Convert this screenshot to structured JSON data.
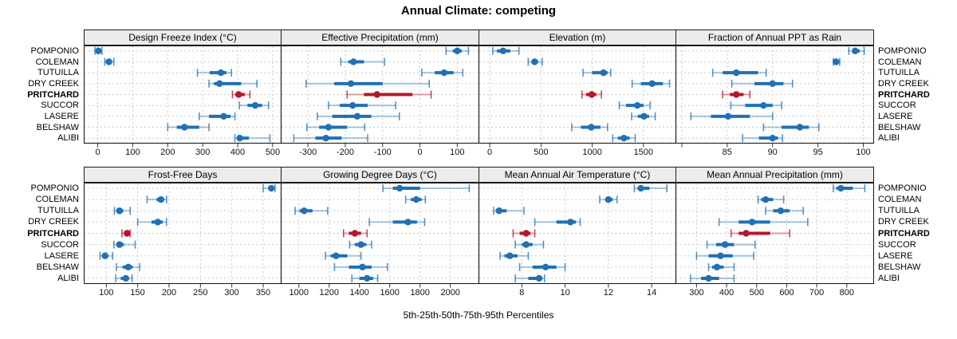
{
  "title": "Annual Climate: competing",
  "footer": "5th-25th-50th-75th-95th Percentiles",
  "colors": {
    "normal": "#2070b4",
    "normal_faint": "rgba(32,112,180,0.38)",
    "normal_cap": "rgba(32,112,180,0.75)",
    "highlight": "#b2182b",
    "highlight_faint": "rgba(178,24,43,0.40)",
    "highlight_cap": "rgba(178,24,43,0.78)",
    "panel_header_bg": "#ececec",
    "panel_border": "#1a1a1a",
    "gridline": "#cccccc",
    "tick": "#333333"
  },
  "chart_data": {
    "type": "trellis-dotplot-percentiles",
    "percentile_labels": [
      "5th",
      "25th",
      "50th",
      "75th",
      "95th"
    ],
    "sites": [
      "POMPONIO",
      "COLEMAN",
      "TUTUILLA",
      "DRY CREEK",
      "PRITCHARD",
      "SUCCOR",
      "LASERE",
      "BELSHAW",
      "ALIBI"
    ],
    "highlight_site": "PRITCHARD",
    "layout": {
      "rows": 2,
      "cols": 4,
      "legend": "none",
      "grid": "dashed"
    },
    "panels": [
      {
        "title": "Design Freeze Index (°C)",
        "domain": [
          -40,
          523
        ],
        "ticks": [
          0,
          100,
          200,
          300,
          400,
          500
        ],
        "values": {
          "POMPONIO": [
            -8,
            -3,
            2,
            6,
            12
          ],
          "COLEMAN": [
            20,
            27,
            32,
            38,
            46
          ],
          "TUTUILLA": [
            285,
            320,
            352,
            368,
            382
          ],
          "DRY CREEK": [
            318,
            332,
            348,
            410,
            455
          ],
          "PRITCHARD": [
            385,
            393,
            403,
            420,
            435
          ],
          "SUCCOR": [
            405,
            428,
            450,
            470,
            488
          ],
          "LASERE": [
            290,
            318,
            360,
            380,
            392
          ],
          "BELSHAW": [
            200,
            226,
            248,
            290,
            318
          ],
          "ALIBI": [
            392,
            398,
            406,
            432,
            492
          ]
        }
      },
      {
        "title": "Effective Precipitation (mm)",
        "domain": [
          -373,
          157
        ],
        "ticks": [
          -300,
          -200,
          -100,
          0,
          100
        ],
        "values": {
          "POMPONIO": [
            70,
            88,
            100,
            112,
            130
          ],
          "COLEMAN": [
            -212,
            -192,
            -178,
            -150,
            -95
          ],
          "TUTUILLA": [
            5,
            40,
            65,
            90,
            115
          ],
          "DRY CREEK": [
            -305,
            -230,
            -185,
            -100,
            25
          ],
          "PRITCHARD": [
            -195,
            -150,
            -115,
            -20,
            30
          ],
          "SUCCOR": [
            -245,
            -215,
            -180,
            -140,
            -65
          ],
          "LASERE": [
            -275,
            -235,
            -168,
            -130,
            -55
          ],
          "BELSHAW": [
            -303,
            -270,
            -245,
            -195,
            -148
          ],
          "ALIBI": [
            -338,
            -280,
            -252,
            -210,
            -140
          ]
        }
      },
      {
        "title": "Elevation (m)",
        "domain": [
          -110,
          1813
        ],
        "ticks": [
          0,
          500,
          1000,
          1500
        ],
        "values": {
          "POMPONIO": [
            30,
            70,
            130,
            200,
            285
          ],
          "COLEMAN": [
            375,
            410,
            438,
            472,
            512
          ],
          "TUTUILLA": [
            910,
            1000,
            1110,
            1150,
            1180
          ],
          "DRY CREEK": [
            1390,
            1475,
            1585,
            1690,
            1755
          ],
          "PRITCHARD": [
            900,
            940,
            995,
            1040,
            1090
          ],
          "SUCCOR": [
            1265,
            1330,
            1440,
            1500,
            1565
          ],
          "LASERE": [
            1385,
            1445,
            1505,
            1555,
            1615
          ],
          "BELSHAW": [
            800,
            890,
            990,
            1080,
            1150
          ],
          "ALIBI": [
            1200,
            1250,
            1310,
            1365,
            1420
          ]
        }
      },
      {
        "title": "Fraction of Annual PPT as Rain",
        "domain": [
          79.3,
          101.1
        ],
        "ticks": [
          80,
          85,
          90,
          95,
          100
        ],
        "tick_labels": [
          "",
          "85",
          "90",
          "95",
          "100"
        ],
        "values": {
          "POMPONIO": [
            98.4,
            98.8,
            99.1,
            99.6,
            100.1
          ],
          "COLEMAN": [
            96.7,
            96.9,
            97.0,
            97.2,
            97.4
          ],
          "TUTUILLA": [
            83.4,
            84.5,
            86.0,
            88.4,
            89.3
          ],
          "DRY CREEK": [
            85.5,
            88.0,
            90.0,
            91.2,
            92.2
          ],
          "PRITCHARD": [
            84.5,
            85.3,
            86.0,
            86.8,
            87.5
          ],
          "SUCCOR": [
            85.4,
            87.0,
            89.0,
            90.0,
            91.0
          ],
          "LASERE": [
            81.0,
            83.2,
            85.1,
            87.5,
            90.0
          ],
          "BELSHAW": [
            89.0,
            91.0,
            93.0,
            94.0,
            95.1
          ],
          "ALIBI": [
            86.7,
            88.5,
            90.0,
            90.6,
            91.1
          ]
        }
      },
      {
        "title": "Frost-Free Days",
        "domain": [
          64,
          378
        ],
        "ticks": [
          100,
          150,
          200,
          250,
          300,
          350
        ],
        "values": {
          "POMPONIO": [
            350,
            358,
            363,
            366,
            369
          ],
          "COLEMAN": [
            165,
            180,
            187,
            192,
            196
          ],
          "TUTUILLA": [
            113,
            116,
            121,
            127,
            138
          ],
          "DRY CREEK": [
            150,
            172,
            182,
            190,
            196
          ],
          "PRITCHARD": [
            125,
            129,
            133,
            136,
            138
          ],
          "SUCCOR": [
            112,
            116,
            121,
            128,
            146
          ],
          "LASERE": [
            90,
            94,
            98,
            103,
            110
          ],
          "BELSHAW": [
            116,
            126,
            135,
            142,
            153
          ],
          "ALIBI": [
            115,
            123,
            131,
            136,
            141
          ]
        }
      },
      {
        "title": "Growing Degree Days (°C)",
        "domain": [
          880,
          2186
        ],
        "ticks": [
          1000,
          1200,
          1400,
          1600,
          1800,
          2000
        ],
        "values": {
          "POMPONIO": [
            1555,
            1620,
            1665,
            1800,
            2125
          ],
          "COLEMAN": [
            1705,
            1740,
            1775,
            1810,
            1835
          ],
          "TUTUILLA": [
            975,
            1005,
            1035,
            1090,
            1190
          ],
          "DRY CREEK": [
            1465,
            1620,
            1720,
            1780,
            1830
          ],
          "PRITCHARD": [
            1295,
            1330,
            1370,
            1410,
            1450
          ],
          "SUCCOR": [
            1335,
            1370,
            1410,
            1445,
            1480
          ],
          "LASERE": [
            1175,
            1210,
            1245,
            1320,
            1410
          ],
          "BELSHAW": [
            1235,
            1330,
            1420,
            1480,
            1585
          ],
          "ALIBI": [
            1350,
            1400,
            1450,
            1490,
            1520
          ]
        }
      },
      {
        "title": "Mean Annual Air Temperature (°C)",
        "domain": [
          6.0,
          15.1
        ],
        "ticks": [
          8,
          10,
          12,
          14
        ],
        "values": {
          "POMPONIO": [
            13.2,
            13.35,
            13.5,
            13.9,
            14.7
          ],
          "COLEMAN": [
            11.6,
            11.85,
            12.0,
            12.2,
            12.4
          ],
          "TUTUILLA": [
            6.7,
            6.8,
            6.95,
            7.3,
            8.1
          ],
          "DRY CREEK": [
            8.6,
            9.6,
            10.25,
            10.5,
            10.7
          ],
          "PRITCHARD": [
            7.6,
            7.9,
            8.2,
            8.4,
            8.6
          ],
          "SUCCOR": [
            7.7,
            8.0,
            8.2,
            8.5,
            9.0
          ],
          "LASERE": [
            7.0,
            7.2,
            7.45,
            7.8,
            8.3
          ],
          "BELSHAW": [
            7.9,
            8.5,
            9.1,
            9.6,
            10.0
          ],
          "ALIBI": [
            7.7,
            8.3,
            8.8,
            8.95,
            9.05
          ]
        }
      },
      {
        "title": "Mean Annual Precipitation (mm)",
        "domain": [
          230,
          888
        ],
        "ticks": [
          300,
          400,
          500,
          600,
          700,
          800
        ],
        "values": {
          "POMPONIO": [
            755,
            765,
            780,
            820,
            860
          ],
          "COLEMAN": [
            505,
            515,
            530,
            555,
            590
          ],
          "TUTUILLA": [
            530,
            555,
            580,
            610,
            655
          ],
          "DRY CREEK": [
            375,
            440,
            485,
            545,
            670
          ],
          "PRITCHARD": [
            415,
            440,
            465,
            545,
            610
          ],
          "SUCCOR": [
            335,
            365,
            395,
            425,
            495
          ],
          "LASERE": [
            300,
            340,
            380,
            420,
            490
          ],
          "BELSHAW": [
            340,
            352,
            368,
            390,
            425
          ],
          "ALIBI": [
            280,
            315,
            340,
            375,
            425
          ]
        }
      }
    ]
  }
}
